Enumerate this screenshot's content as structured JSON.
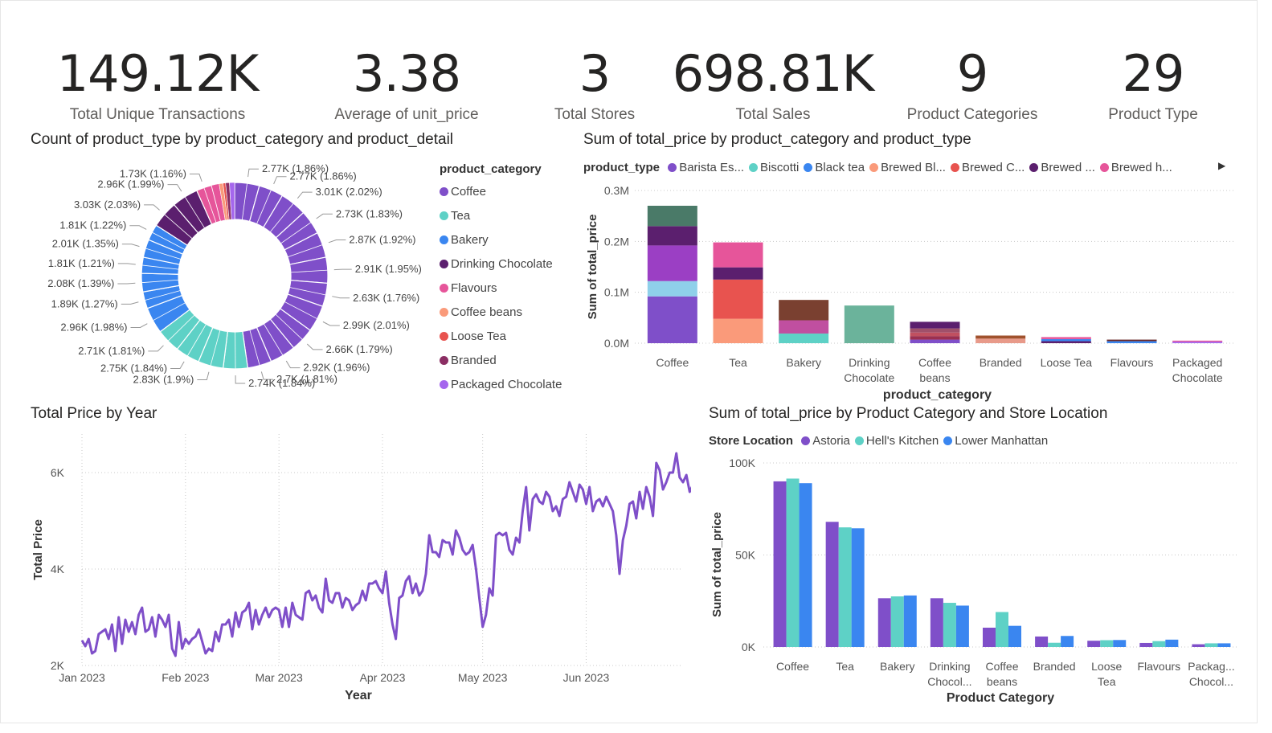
{
  "kpis": [
    {
      "value": "149.12K",
      "label": "Total Unique Transactions"
    },
    {
      "value": "3.38",
      "label": "Average of unit_price"
    },
    {
      "value": "3",
      "label": "Total Stores"
    },
    {
      "value": "698.81K",
      "label": "Total Sales"
    },
    {
      "value": "9",
      "label": "Product Categories"
    },
    {
      "value": "29",
      "label": "Product Type"
    }
  ],
  "colors": {
    "Coffee": "#7f4fc9",
    "Tea": "#5ed1c6",
    "Bakery": "#3a86f0",
    "Drinking Chocolate": "#5b1f6e",
    "Flavours": "#e6559a",
    "Coffee beans": "#fa9a7a",
    "Loose Tea": "#e8534f",
    "Branded": "#8b2e63",
    "Packaged Chocolate": "#a566ed"
  },
  "chart_data": [
    {
      "type": "pie",
      "title": "Count of product_type by product_category and product_detail",
      "legend_title": "product_category",
      "legend": [
        "Coffee",
        "Tea",
        "Bakery",
        "Drinking Chocolate",
        "Flavours",
        "Coffee beans",
        "Loose Tea",
        "Branded",
        "Packaged Chocolate"
      ],
      "slices": [
        {
          "label": "2.77K (1.86%)",
          "value": 1.86,
          "category": "Coffee"
        },
        {
          "label": "2.77K (1.86%)",
          "value": 1.86,
          "category": "Coffee"
        },
        {
          "label": "3.01K (2.02%)",
          "value": 2.02,
          "category": "Coffee"
        },
        {
          "label": "2.73K (1.83%)",
          "value": 1.83,
          "category": "Coffee"
        },
        {
          "label": "2.87K (1.92%)",
          "value": 1.92,
          "category": "Coffee"
        },
        {
          "label": "2.91K (1.95%)",
          "value": 1.95,
          "category": "Coffee"
        },
        {
          "label": "2.63K (1.76%)",
          "value": 1.76,
          "category": "Coffee"
        },
        {
          "label": "2.99K (2.01%)",
          "value": 2.01,
          "category": "Coffee"
        },
        {
          "label": "2.66K (1.79%)",
          "value": 1.79,
          "category": "Coffee"
        },
        {
          "label": "2.92K (1.96%)",
          "value": 1.96,
          "category": "Coffee"
        },
        {
          "label": "2.7K (1.81%)",
          "value": 1.81,
          "category": "Coffee"
        },
        {
          "label": "2.74K (1.84%)",
          "value": 1.84,
          "category": "Tea"
        },
        {
          "label": "2.83K (1.9%)",
          "value": 1.9,
          "category": "Tea"
        },
        {
          "label": "2.75K (1.84%)",
          "value": 1.84,
          "category": "Tea"
        },
        {
          "label": "2.71K (1.81%)",
          "value": 1.81,
          "category": "Tea"
        },
        {
          "label": "2.96K (1.98%)",
          "value": 1.98,
          "category": "Bakery"
        },
        {
          "label": "1.89K (1.27%)",
          "value": 1.27,
          "category": "Bakery"
        },
        {
          "label": "2.08K (1.39%)",
          "value": 1.39,
          "category": "Bakery"
        },
        {
          "label": "1.81K (1.21%)",
          "value": 1.21,
          "category": "Bakery"
        },
        {
          "label": "2.01K (1.35%)",
          "value": 1.35,
          "category": "Bakery"
        },
        {
          "label": "1.81K (1.22%)",
          "value": 1.22,
          "category": "Bakery"
        },
        {
          "label": "3.03K (2.03%)",
          "value": 2.03,
          "category": "Drinking Chocolate"
        },
        {
          "label": "2.96K (1.99%)",
          "value": 1.99,
          "category": "Drinking Chocolate"
        },
        {
          "label": "1.73K (1.16%)",
          "value": 1.16,
          "category": "Flavours"
        }
      ]
    },
    {
      "type": "bar",
      "stacked": true,
      "title": "Sum of total_price by product_category and product_type",
      "legend_title": "product_type",
      "legend": [
        {
          "name": "Barista Es...",
          "color": "#7f4fc9"
        },
        {
          "name": "Biscotti",
          "color": "#5ed1c6"
        },
        {
          "name": "Black tea",
          "color": "#3a86f0"
        },
        {
          "name": "Brewed Bl...",
          "color": "#fa9a7a"
        },
        {
          "name": "Brewed C...",
          "color": "#e8534f"
        },
        {
          "name": "Brewed ...",
          "color": "#5b1f6e"
        },
        {
          "name": "Brewed h...",
          "color": "#e6559a"
        }
      ],
      "categories": [
        "Coffee",
        "Tea",
        "Bakery",
        "Drinking Chocolate",
        "Coffee beans",
        "Branded",
        "Loose Tea",
        "Flavours",
        "Packaged Chocolate"
      ],
      "category_labels": [
        [
          "Coffee"
        ],
        [
          "Tea"
        ],
        [
          "Bakery"
        ],
        [
          "Drinking",
          "Chocolate"
        ],
        [
          "Coffee",
          "beans"
        ],
        [
          "Branded"
        ],
        [
          "Loose Tea"
        ],
        [
          "Flavours"
        ],
        [
          "Packaged",
          "Chocolate"
        ]
      ],
      "stacks": [
        [
          {
            "v": 0.092,
            "c": "#7f4fc9"
          },
          {
            "v": 0.03,
            "c": "#8fd0ea"
          },
          {
            "v": 0.07,
            "c": "#9b3fc4"
          },
          {
            "v": 0.038,
            "c": "#5b1f6e"
          },
          {
            "v": 0.04,
            "c": "#4a7a68"
          }
        ],
        [
          {
            "v": 0.048,
            "c": "#fa9a7a"
          },
          {
            "v": 0.077,
            "c": "#e8534f"
          },
          {
            "v": 0.024,
            "c": "#5b1f6e"
          },
          {
            "v": 0.049,
            "c": "#e6559a"
          }
        ],
        [
          {
            "v": 0.019,
            "c": "#5ed1c6"
          },
          {
            "v": 0.026,
            "c": "#c04fa0"
          },
          {
            "v": 0.04,
            "c": "#7a4030"
          }
        ],
        [
          {
            "v": 0.074,
            "c": "#6bb39b"
          }
        ],
        [
          {
            "v": 0.007,
            "c": "#7f4fc9"
          },
          {
            "v": 0.007,
            "c": "#9b3050"
          },
          {
            "v": 0.007,
            "c": "#c05060"
          },
          {
            "v": 0.008,
            "c": "#a0506a"
          },
          {
            "v": 0.013,
            "c": "#5b1f6e"
          }
        ],
        [
          {
            "v": 0.009,
            "c": "#e89a8a"
          },
          {
            "v": 0.006,
            "c": "#a0522d"
          }
        ],
        [
          {
            "v": 0.004,
            "c": "#5b1f6e"
          },
          {
            "v": 0.004,
            "c": "#3a86f0"
          },
          {
            "v": 0.004,
            "c": "#e6559a"
          }
        ],
        [
          {
            "v": 0.004,
            "c": "#3a86f0"
          },
          {
            "v": 0.003,
            "c": "#6b2a2a"
          }
        ],
        [
          {
            "v": 0.003,
            "c": "#a566ed"
          },
          {
            "v": 0.002,
            "c": "#e6559a"
          }
        ]
      ],
      "xlabel": "product_category",
      "ylabel": "Sum of total_price",
      "ylim": [
        0,
        0.3
      ],
      "yticks": [
        "0.0M",
        "0.1M",
        "0.2M",
        "0.3M"
      ]
    },
    {
      "type": "line",
      "title": "Total Price by Year",
      "xlabel": "Year",
      "ylabel": "Total Price",
      "ylim": [
        2000,
        6800
      ],
      "yticks": [
        "2K",
        "4K",
        "6K"
      ],
      "xticks": [
        "Jan 2023",
        "Feb 2023",
        "Mar 2023",
        "Apr 2023",
        "May 2023",
        "Jun 2023"
      ],
      "xtick_days": [
        1,
        32,
        60,
        91,
        121,
        152
      ],
      "days": 181,
      "values": [
        2520,
        2400,
        2550,
        2250,
        2300,
        2650,
        2700,
        2750,
        2550,
        2850,
        2300,
        3000,
        2450,
        2950,
        2700,
        2900,
        2650,
        3050,
        3200,
        2700,
        2750,
        3000,
        2600,
        3050,
        2950,
        2800,
        3050,
        2350,
        2200,
        2900,
        2350,
        2550,
        2450,
        2550,
        2600,
        2750,
        2500,
        2250,
        2350,
        2300,
        2700,
        2500,
        2850,
        2850,
        2950,
        2600,
        3100,
        2800,
        3100,
        3150,
        3300,
        2750,
        3150,
        2850,
        3050,
        3200,
        3000,
        3150,
        3200,
        3150,
        2800,
        3200,
        2800,
        3300,
        3050,
        3000,
        2950,
        3500,
        3550,
        3350,
        3450,
        3200,
        3100,
        3800,
        3350,
        3300,
        3500,
        3500,
        3200,
        3400,
        3350,
        3150,
        3250,
        3300,
        3550,
        3350,
        3700,
        3700,
        3750,
        3600,
        3500,
        3950,
        3300,
        2850,
        2550,
        3400,
        3450,
        3750,
        3850,
        3500,
        3700,
        3450,
        3550,
        3900,
        4700,
        4350,
        4350,
        4250,
        4600,
        4550,
        4550,
        4300,
        4800,
        4650,
        4400,
        4300,
        4350,
        4500,
        4000,
        3400,
        2800,
        3050,
        3600,
        3450,
        4700,
        4750,
        4700,
        4750,
        4400,
        4300,
        4650,
        4550,
        5200,
        5700,
        4800,
        5450,
        5550,
        5400,
        5350,
        5600,
        5500,
        5200,
        5300,
        5100,
        5450,
        5500,
        5800,
        5600,
        5400,
        5750,
        5650,
        5350,
        5700,
        5200,
        5400,
        5450,
        5300,
        5500,
        5350,
        5200,
        4700,
        3900,
        4600,
        4900,
        5350,
        5400,
        5050,
        5600,
        5250,
        5700,
        5500,
        5100,
        6200,
        6050,
        5650,
        5800,
        6000,
        6000,
        6400,
        5900,
        5800,
        5950,
        5600,
        5750,
        5850
      ]
    },
    {
      "type": "bar",
      "title": "Sum of total_price by Product Category and Store Location",
      "legend_title": "Store Location",
      "series": [
        {
          "name": "Astoria",
          "color": "#7f4fc9",
          "values": [
            90000,
            68000,
            26500,
            26500,
            10500,
            5700,
            3400,
            2200,
            1500
          ]
        },
        {
          "name": "Hell's Kitchen",
          "color": "#5ed1c6",
          "values": [
            91500,
            65000,
            27500,
            24000,
            19000,
            2300,
            3700,
            3200,
            2000
          ]
        },
        {
          "name": "Lower Manhattan",
          "color": "#3a86f0",
          "values": [
            89000,
            64500,
            28000,
            22500,
            11500,
            6000,
            3800,
            4000,
            2000
          ]
        }
      ],
      "categories": [
        "Coffee",
        "Tea",
        "Bakery",
        "Drinking Chocol...",
        "Coffee beans",
        "Branded",
        "Loose Tea",
        "Flavours",
        "Packag... Chocol..."
      ],
      "category_labels": [
        [
          "Coffee"
        ],
        [
          "Tea"
        ],
        [
          "Bakery"
        ],
        [
          "Drinking",
          "Chocol..."
        ],
        [
          "Coffee",
          "beans"
        ],
        [
          "Branded"
        ],
        [
          "Loose",
          "Tea"
        ],
        [
          "Flavours"
        ],
        [
          "Packag...",
          "Chocol..."
        ]
      ],
      "xlabel": "Product Category",
      "ylabel": "Sum of total_price",
      "ylim": [
        0,
        100000
      ],
      "yticks": [
        "0K",
        "50K",
        "100K"
      ]
    }
  ]
}
